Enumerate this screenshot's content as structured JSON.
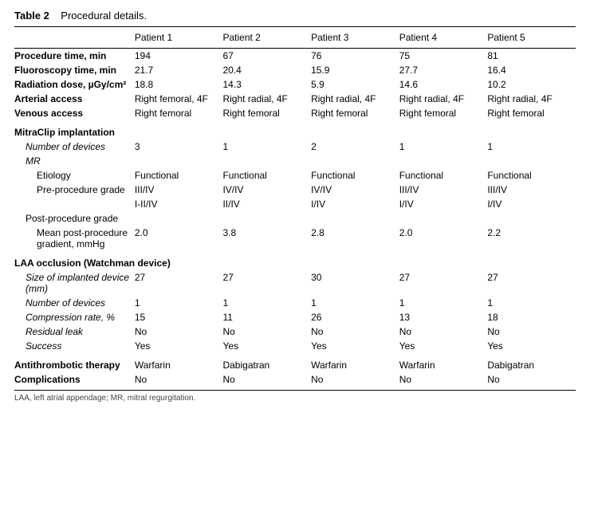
{
  "title_prefix": "Table 2",
  "title_rest": "Procedural details.",
  "columns": [
    "Patient 1",
    "Patient 2",
    "Patient 3",
    "Patient 4",
    "Patient 5"
  ],
  "rows": {
    "proc_time": {
      "label": "Procedure time, min",
      "v": [
        "194",
        "67",
        "76",
        "75",
        "81"
      ]
    },
    "fluoro": {
      "label": "Fluoroscopy time, min",
      "v": [
        "21.7",
        "20.4",
        "15.9",
        "27.7",
        "16.4"
      ]
    },
    "rad": {
      "label": "Radiation dose, µGy/cm²",
      "v": [
        "18.8",
        "14.3",
        "5.9",
        "14.6",
        "10.2"
      ]
    },
    "arterial": {
      "label": "Arterial access",
      "v": [
        "Right femoral, 4F",
        "Right radial, 4F",
        "Right radial, 4F",
        "Right radial, 4F",
        "Right radial, 4F"
      ]
    },
    "venous": {
      "label": "Venous access",
      "v": [
        "Right femoral",
        "Right femoral",
        "Right femoral",
        "Right femoral",
        "Right femoral"
      ]
    },
    "mitra_hdr": {
      "label": "MitraClip implantation"
    },
    "ndev_m": {
      "label": "Number of devices",
      "v": [
        "3",
        "1",
        "2",
        "1",
        "1"
      ]
    },
    "mr_hdr": {
      "label": "MR"
    },
    "etiology": {
      "label": "Etiology",
      "v": [
        "Functional",
        "Functional",
        "Functional",
        "Functional",
        "Functional"
      ]
    },
    "pregrade": {
      "label": "Pre-procedure grade",
      "v": [
        "III/IV",
        "IV/IV",
        "IV/IV",
        "III/IV",
        "III/IV"
      ]
    },
    "postgrade_a": {
      "label": "",
      "v": [
        "I-II/IV",
        "II/IV",
        "I/IV",
        "I/IV",
        "I/IV"
      ]
    },
    "postgrade_l": {
      "label": "Post-procedure grade"
    },
    "mean_grad": {
      "label": "Mean post-procedure gradient, mmHg",
      "v": [
        "2.0",
        "3.8",
        "2.8",
        "2.0",
        "2.2"
      ]
    },
    "laa_hdr": {
      "label": "LAA occlusion (Watchman device)"
    },
    "size": {
      "label": "Size of implanted device (mm)",
      "v": [
        "27",
        "27",
        "30",
        "27",
        "27"
      ]
    },
    "ndev_l": {
      "label": "Number of devices",
      "v": [
        "1",
        "1",
        "1",
        "1",
        "1"
      ]
    },
    "compr": {
      "label": "Compression rate, %",
      "v": [
        "15",
        "11",
        "26",
        "13",
        "18"
      ]
    },
    "leak": {
      "label": "Residual leak",
      "v": [
        "No",
        "No",
        "No",
        "No",
        "No"
      ]
    },
    "success": {
      "label": "Success",
      "v": [
        "Yes",
        "Yes",
        "Yes",
        "Yes",
        "Yes"
      ]
    },
    "anti": {
      "label": "Antithrombotic therapy",
      "v": [
        "Warfarin",
        "Dabigatran",
        "Warfarin",
        "Warfarin",
        "Dabigatran"
      ]
    },
    "compl": {
      "label": "Complications",
      "v": [
        "No",
        "No",
        "No",
        "No",
        "No"
      ]
    }
  },
  "footnote": "LAA, left atrial appendage; MR, mitral regurgitation."
}
